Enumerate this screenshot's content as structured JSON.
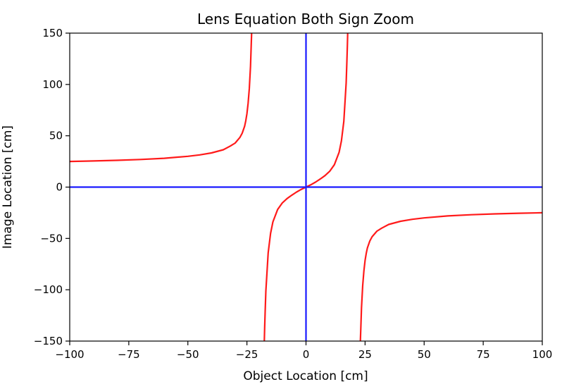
{
  "chart_data": {
    "type": "line",
    "title": "Lens Equation Both Sign Zoom",
    "xlabel": "Object Location [cm]",
    "ylabel": "Image Location [cm]",
    "xlim": [
      -100,
      100
    ],
    "ylim": [
      -150,
      150
    ],
    "xticks": [
      -100,
      -75,
      -50,
      -25,
      0,
      25,
      50,
      75,
      100
    ],
    "xtick_labels": [
      "−100",
      "−75",
      "−50",
      "−25",
      "0",
      "25",
      "50",
      "75",
      "100"
    ],
    "yticks": [
      -150,
      -100,
      -50,
      0,
      50,
      100,
      150
    ],
    "ytick_labels": [
      "−150",
      "−100",
      "−50",
      "0",
      "50",
      "100",
      "150"
    ],
    "grid": false,
    "legend": "none",
    "colors": {
      "curves": "#ff1a1a",
      "axes_lines": "#1a1aff"
    },
    "series": [
      {
        "color": "#ff1a1a",
        "segments": [
          {
            "x": [
              -100,
              -90,
              -80,
              -70,
              -60,
              -50,
              -45,
              -40,
              -35,
              -32,
              -30,
              -28,
              -27,
              -26,
              -25.5,
              -25,
              -24.5,
              -24,
              -23.5,
              -23.2,
              -23
            ],
            "y": [
              25.0,
              25.5,
              26.1,
              26.9,
              28.1,
              30.0,
              31.4,
              33.3,
              36.4,
              40.0,
              42.9,
              48.3,
              52.5,
              59.2,
              64.3,
              71.4,
              81.7,
              96.0,
              117.5,
              138.1,
              150.0
            ]
          },
          {
            "x": [
              -17.65,
              -17.5,
              -17.3,
              -17,
              -16,
              -15,
              -14,
              -12,
              -10,
              -8,
              -6,
              -4,
              -2,
              0,
              2,
              4,
              6,
              8,
              10,
              12,
              14,
              15,
              16,
              17,
              17.3,
              17.5,
              17.65
            ],
            "y": [
              -150.0,
              -136.9,
              -121.4,
              -101.2,
              -64.0,
              -45.0,
              -33.9,
              -21.8,
              -15.4,
              -11.1,
              -7.8,
              -4.8,
              -2.2,
              0.0,
              2.2,
              4.8,
              7.8,
              11.1,
              15.4,
              21.8,
              33.9,
              45.0,
              64.0,
              101.2,
              121.4,
              136.9,
              150.0
            ]
          },
          {
            "x": [
              23,
              23.2,
              23.5,
              24,
              24.5,
              25,
              25.5,
              26,
              27,
              28,
              30,
              32,
              35,
              40,
              45,
              50,
              60,
              70,
              80,
              90,
              100
            ],
            "y": [
              -150.0,
              -138.1,
              -117.5,
              -96.0,
              -81.7,
              -71.4,
              -64.3,
              -59.2,
              -52.5,
              -48.3,
              -42.9,
              -40.0,
              -36.4,
              -33.3,
              -31.4,
              -30.0,
              -28.1,
              -26.9,
              -26.1,
              -25.5,
              -25.0
            ]
          }
        ]
      },
      {
        "color": "#1a1aff",
        "segments": [
          {
            "x": [
              0,
              0
            ],
            "y": [
              -150,
              150
            ]
          },
          {
            "x": [
              -100,
              100
            ],
            "y": [
              0,
              0
            ]
          }
        ]
      }
    ]
  }
}
